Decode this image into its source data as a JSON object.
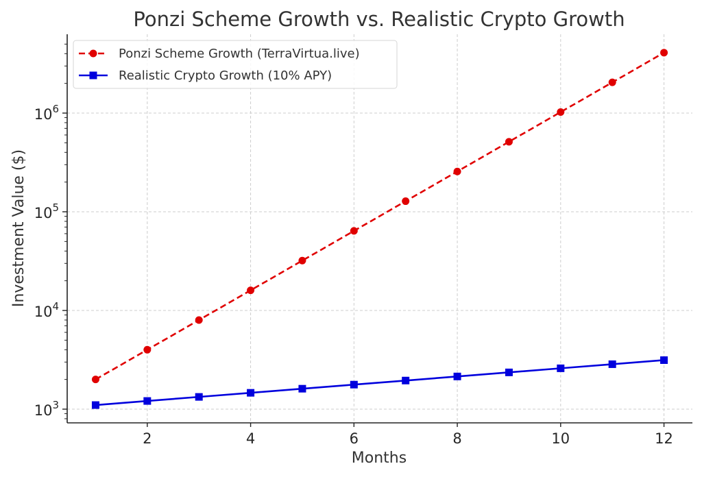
{
  "chart_data": {
    "type": "line",
    "title": "Ponzi Scheme Growth vs. Realistic Crypto Growth",
    "xlabel": "Months",
    "ylabel": "Investment Value ($)",
    "yscale": "log",
    "x": [
      1,
      2,
      3,
      4,
      5,
      6,
      7,
      8,
      9,
      10,
      11,
      12
    ],
    "xlim": [
      0.45,
      12.55
    ],
    "ylim": [
      800,
      5500000
    ],
    "xticks": [
      2,
      4,
      6,
      8,
      10,
      12
    ],
    "xtick_labels": [
      "2",
      "4",
      "6",
      "8",
      "10",
      "12"
    ],
    "yticks": [
      1000,
      10000,
      100000,
      1000000
    ],
    "ytick_labels": [
      {
        "base": "10",
        "exp": "3"
      },
      {
        "base": "10",
        "exp": "4"
      },
      {
        "base": "10",
        "exp": "5"
      },
      {
        "base": "10",
        "exp": "6"
      }
    ],
    "grid": true,
    "legend_position": "top-left",
    "series": [
      {
        "name": "Ponzi Scheme Growth (TerraVirtua.live)",
        "color": "#e00000",
        "line_style": "dashed",
        "marker": "circle",
        "values": [
          2000,
          4000,
          8000,
          16000,
          32000,
          64000,
          128000,
          256000,
          512000,
          1024000,
          2048000,
          4096000
        ]
      },
      {
        "name": "Realistic Crypto Growth (10% APY)",
        "color": "#0000dd",
        "line_style": "solid",
        "marker": "square",
        "values": [
          1100,
          1210,
          1331,
          1464,
          1611,
          1772,
          1949,
          2144,
          2358,
          2594,
          2853,
          3138
        ]
      }
    ]
  }
}
